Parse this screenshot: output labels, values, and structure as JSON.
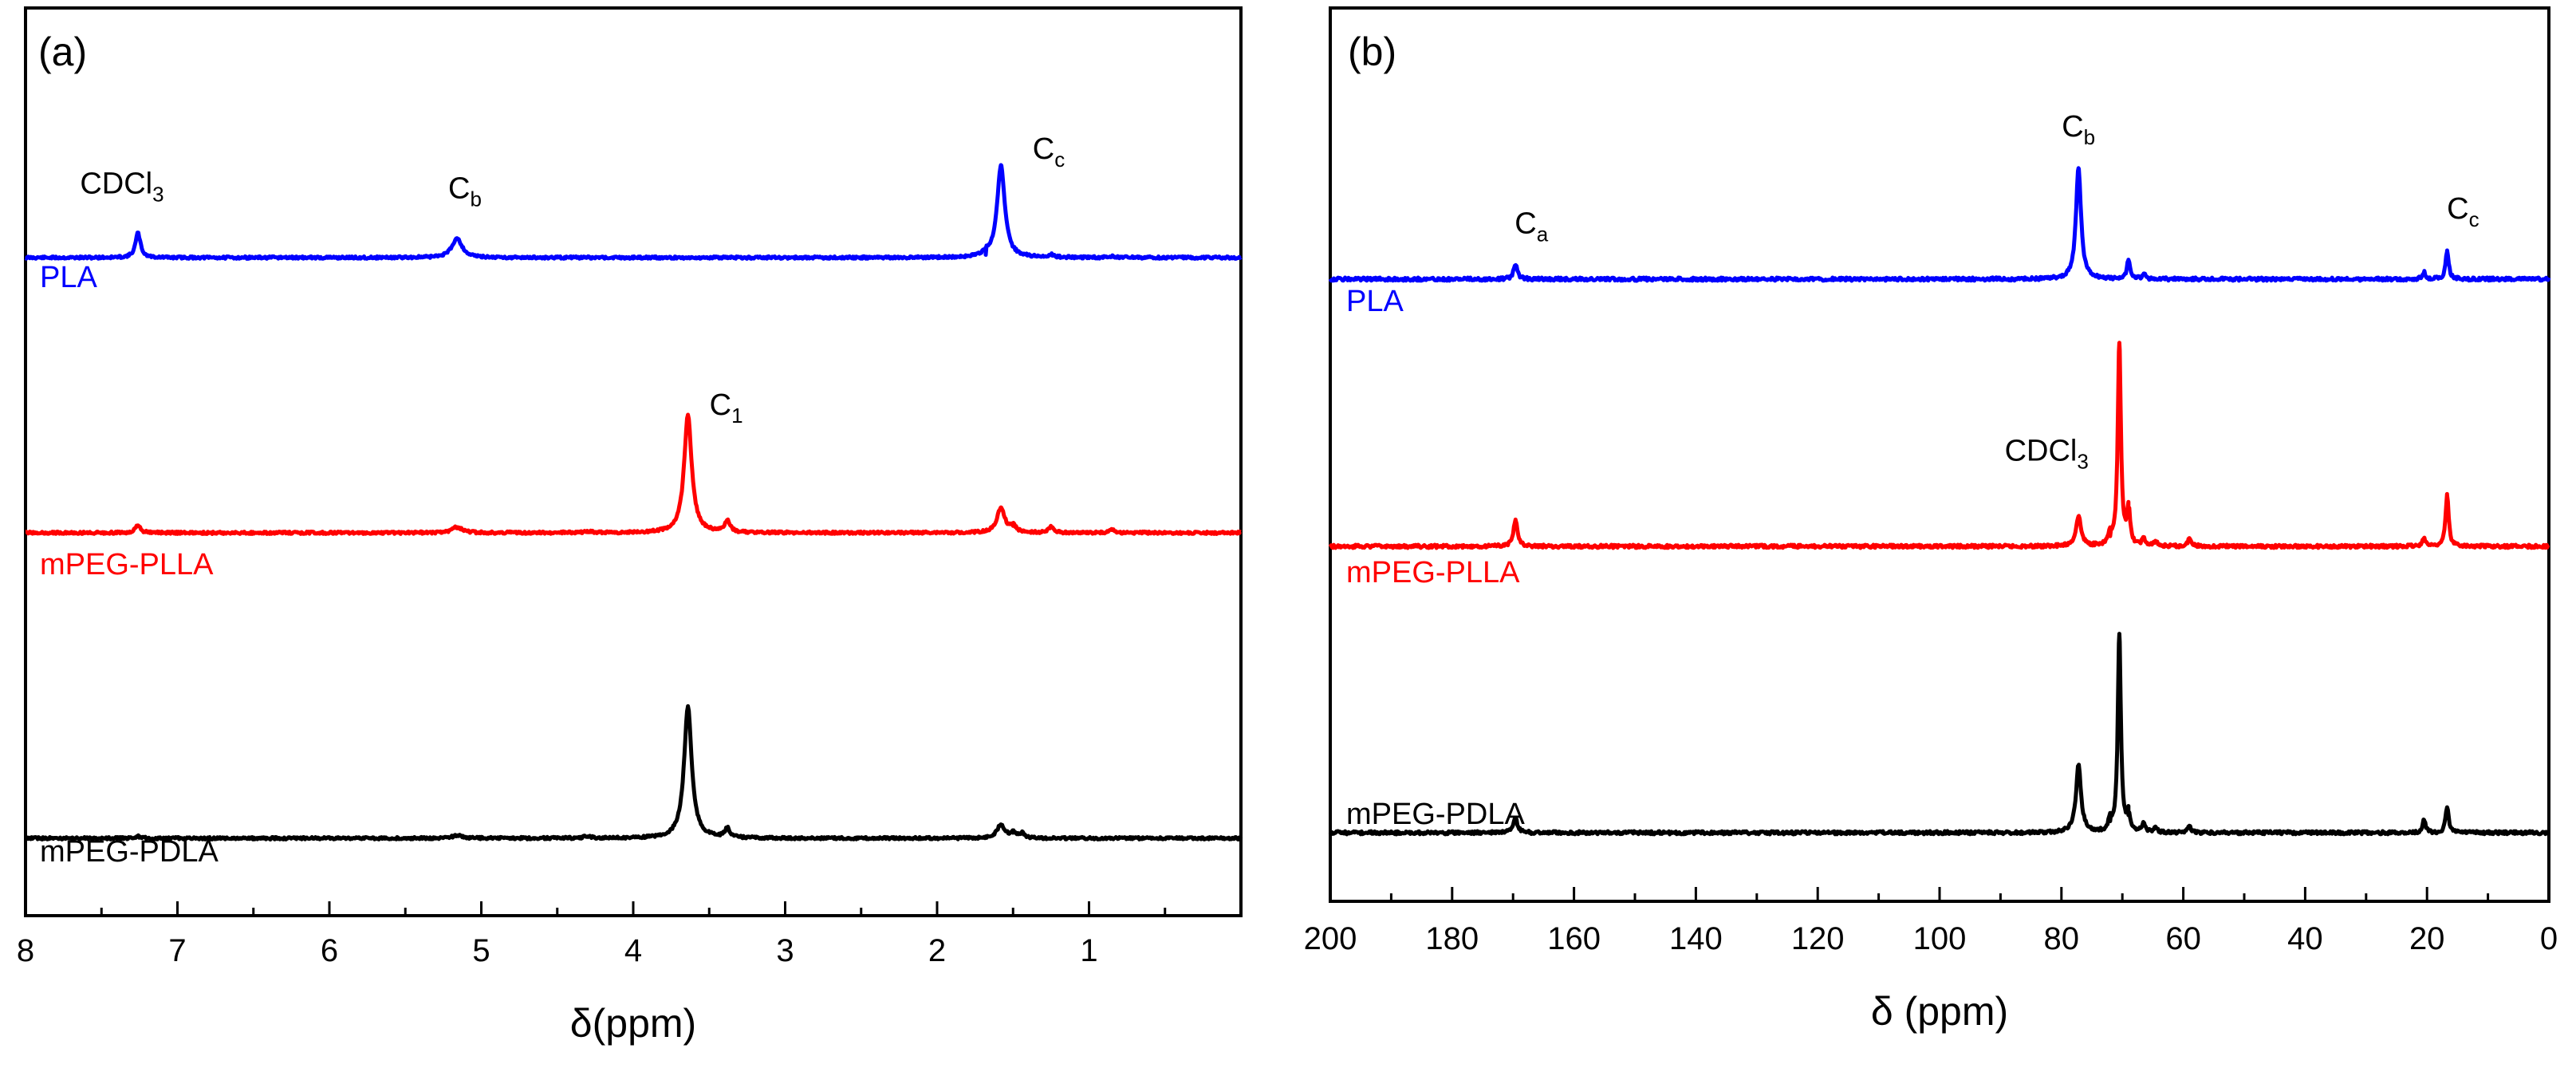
{
  "chart_data": [
    {
      "panel_label": "(a)",
      "type": "line",
      "xlabel": "δ(ppm)",
      "xlim": [
        8.0,
        0.0
      ],
      "x_ticks": [
        "8",
        "7",
        "6",
        "5",
        "4",
        "3",
        "2",
        "1"
      ],
      "x_tick_values": [
        8,
        7,
        6,
        5,
        4,
        3,
        2,
        1
      ],
      "series": [
        {
          "name": "PLA",
          "color": "#0000ff",
          "peaks": [
            {
              "ppm": 7.26,
              "height": 0.53,
              "width": 0.02
            },
            {
              "ppm": 5.16,
              "height": 0.42,
              "width": 0.04
            },
            {
              "ppm": 1.58,
              "height": 2.0,
              "width": 0.03
            },
            {
              "ppm": 1.68,
              "height": 0.06,
              "width": 0.02
            },
            {
              "ppm": 1.25,
              "height": 0.06,
              "width": 0.02
            },
            {
              "ppm": 0.85,
              "height": 0.03,
              "width": 0.02
            }
          ],
          "annotations": [
            {
              "ppm": 7.26,
              "text": "CDCl",
              "sub": "3"
            },
            {
              "ppm": 5.16,
              "text": "C",
              "sub": "b"
            },
            {
              "ppm": 1.58,
              "text": "C",
              "sub": "c"
            }
          ]
        },
        {
          "name": "mPEG-PLLA",
          "color": "#ff0000",
          "peaks": [
            {
              "ppm": 7.26,
              "height": 0.16,
              "width": 0.02
            },
            {
              "ppm": 5.16,
              "height": 0.12,
              "width": 0.04
            },
            {
              "ppm": 4.3,
              "height": 0.03,
              "width": 0.03
            },
            {
              "ppm": 3.64,
              "height": 2.55,
              "width": 0.03
            },
            {
              "ppm": 3.38,
              "height": 0.26,
              "width": 0.02
            },
            {
              "ppm": 1.58,
              "height": 0.55,
              "width": 0.03
            },
            {
              "ppm": 1.5,
              "height": 0.15,
              "width": 0.02
            },
            {
              "ppm": 1.25,
              "height": 0.12,
              "width": 0.02
            },
            {
              "ppm": 0.85,
              "height": 0.06,
              "width": 0.02
            }
          ],
          "annotations": [
            {
              "ppm": 3.64,
              "text": "C",
              "sub": "1"
            }
          ]
        },
        {
          "name": "mPEG-PDLA",
          "color": "#000000",
          "peaks": [
            {
              "ppm": 7.26,
              "height": 0.04,
              "width": 0.02
            },
            {
              "ppm": 5.16,
              "height": 0.06,
              "width": 0.04
            },
            {
              "ppm": 4.3,
              "height": 0.04,
              "width": 0.03
            },
            {
              "ppm": 3.64,
              "height": 2.85,
              "width": 0.03
            },
            {
              "ppm": 3.38,
              "height": 0.2,
              "width": 0.02
            },
            {
              "ppm": 1.58,
              "height": 0.3,
              "width": 0.03
            },
            {
              "ppm": 1.5,
              "height": 0.12,
              "width": 0.02
            },
            {
              "ppm": 1.44,
              "height": 0.1,
              "width": 0.02
            }
          ],
          "annotations": []
        }
      ]
    },
    {
      "panel_label": "(b)",
      "type": "line",
      "xlabel": "δ (ppm)",
      "xlim": [
        200,
        0
      ],
      "x_ticks": [
        "200",
        "180",
        "160",
        "140",
        "120",
        "100",
        "80",
        "60",
        "40",
        "20",
        "0"
      ],
      "x_tick_values": [
        200,
        180,
        160,
        140,
        120,
        100,
        80,
        60,
        40,
        20,
        0
      ],
      "series": [
        {
          "name": "PLA",
          "color": "#0000ff",
          "peaks": [
            {
              "ppm": 169.6,
              "height": 0.3,
              "width": 0.4
            },
            {
              "ppm": 77.2,
              "height": 2.4,
              "width": 0.5
            },
            {
              "ppm": 69.0,
              "height": 0.42,
              "width": 0.3
            },
            {
              "ppm": 66.5,
              "height": 0.12,
              "width": 0.3
            },
            {
              "ppm": 20.5,
              "height": 0.15,
              "width": 0.3
            },
            {
              "ppm": 16.7,
              "height": 0.62,
              "width": 0.3
            }
          ],
          "annotations": [
            {
              "ppm": 169.6,
              "text": "C",
              "sub": "a"
            },
            {
              "ppm": 77.2,
              "text": "C",
              "sub": "b"
            },
            {
              "ppm": 16.7,
              "text": "C",
              "sub": "c"
            }
          ]
        },
        {
          "name": "mPEG-PLLA",
          "color": "#ff0000",
          "peaks": [
            {
              "ppm": 169.6,
              "height": 0.58,
              "width": 0.4
            },
            {
              "ppm": 77.2,
              "height": 0.65,
              "width": 0.5
            },
            {
              "ppm": 72.0,
              "height": 0.22,
              "width": 0.3
            },
            {
              "ppm": 70.5,
              "height": 4.4,
              "width": 0.3
            },
            {
              "ppm": 69.0,
              "height": 0.8,
              "width": 0.3
            },
            {
              "ppm": 66.5,
              "height": 0.15,
              "width": 0.3
            },
            {
              "ppm": 64.5,
              "height": 0.1,
              "width": 0.3
            },
            {
              "ppm": 59.0,
              "height": 0.18,
              "width": 0.3
            },
            {
              "ppm": 20.5,
              "height": 0.18,
              "width": 0.3
            },
            {
              "ppm": 16.7,
              "height": 1.1,
              "width": 0.3
            }
          ],
          "annotations": [
            {
              "ppm": 77.2,
              "text": "CDCl",
              "sub": "3"
            }
          ]
        },
        {
          "name": "mPEG-PDLA",
          "color": "#000000",
          "peaks": [
            {
              "ppm": 169.6,
              "height": 0.3,
              "width": 0.4
            },
            {
              "ppm": 77.2,
              "height": 1.45,
              "width": 0.5
            },
            {
              "ppm": 72.0,
              "height": 0.25,
              "width": 0.3
            },
            {
              "ppm": 70.5,
              "height": 4.3,
              "width": 0.3
            },
            {
              "ppm": 69.0,
              "height": 0.38,
              "width": 0.3
            },
            {
              "ppm": 66.5,
              "height": 0.22,
              "width": 0.3
            },
            {
              "ppm": 64.5,
              "height": 0.12,
              "width": 0.3
            },
            {
              "ppm": 59.0,
              "height": 0.15,
              "width": 0.3
            },
            {
              "ppm": 20.5,
              "height": 0.28,
              "width": 0.3
            },
            {
              "ppm": 16.7,
              "height": 0.55,
              "width": 0.3
            }
          ],
          "annotations": []
        }
      ]
    }
  ]
}
